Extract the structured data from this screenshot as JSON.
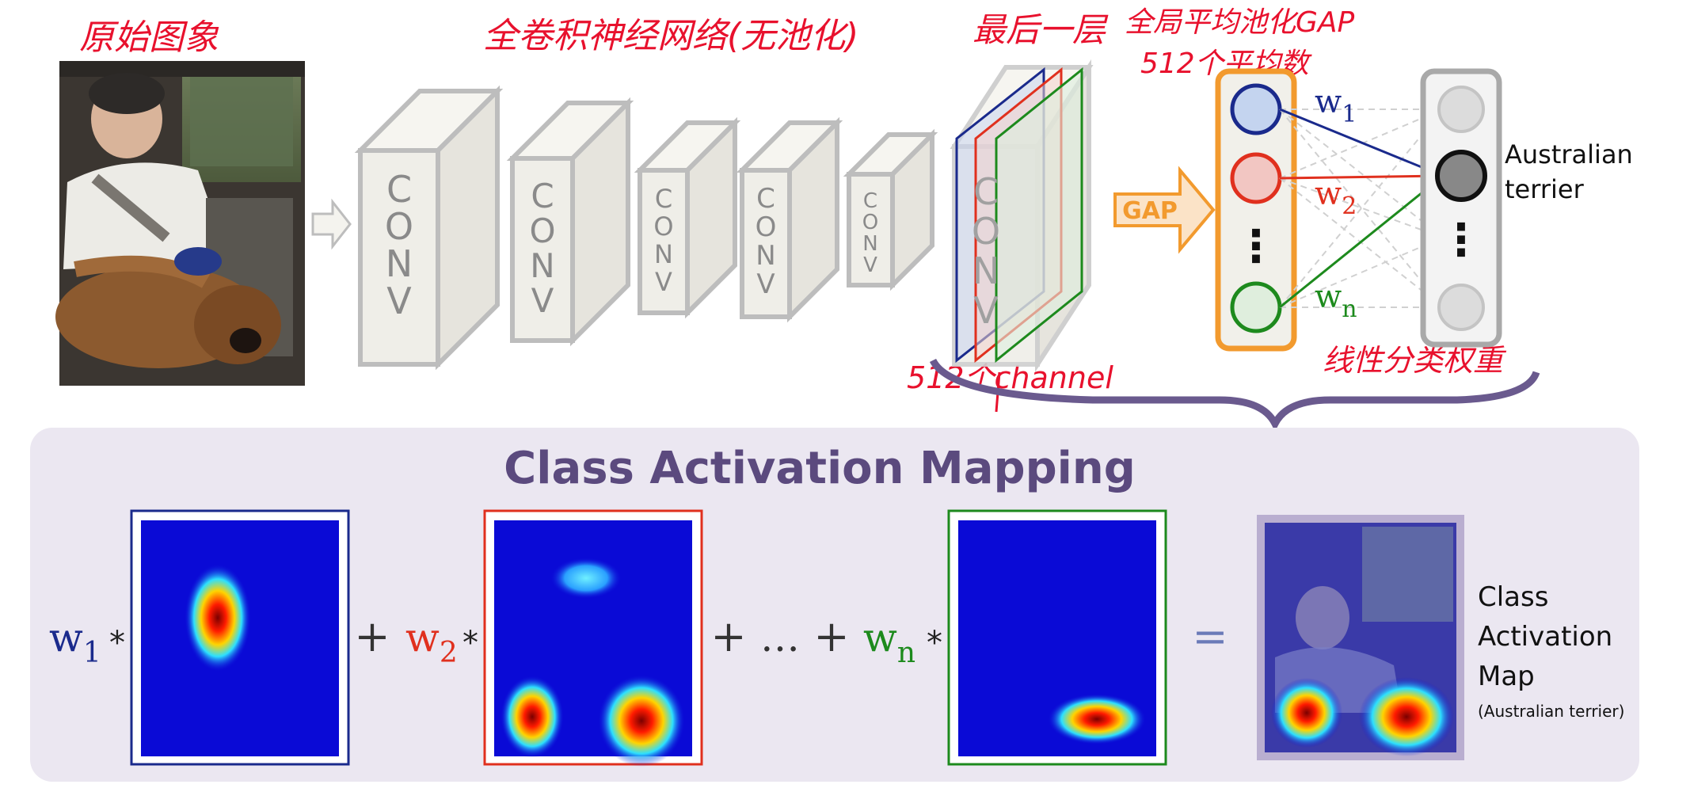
{
  "annotations": {
    "original_image": "原始图象",
    "fcn": "全卷积神经网络(无池化)",
    "last_layer": "最后一层",
    "gap_title": "全局平均池化GAP",
    "gap_count": "512个平均数",
    "channels": "512个channel",
    "linear_weights": "线性分类权重"
  },
  "network": {
    "conv_letters": [
      "C",
      "O",
      "N",
      "V"
    ],
    "gap_label": "GAP",
    "weights": [
      {
        "base": "w",
        "sub": "1",
        "color": "#1a2a8c"
      },
      {
        "base": "w",
        "sub": "2",
        "color": "#e0301e"
      },
      {
        "base": "w",
        "sub": "n",
        "color": "#1d8a1d"
      }
    ],
    "vdots": "⋮",
    "output_label_line1": "Australian",
    "output_label_line2": "terrier"
  },
  "cam": {
    "title": "Class Activation Mapping",
    "op_times": "*",
    "op_plus": "+",
    "op_ellipsis": "…",
    "op_equals": "=",
    "result_line1": "Class",
    "result_line2": "Activation",
    "result_line3": "Map",
    "result_sub": "(Australian terrier)"
  },
  "colors": {
    "annotation_red": "#e8112d",
    "gap_orange": "#f29a2e",
    "cam_bg": "#ebe7f1",
    "cam_title": "#5b4a7e",
    "arrow_purple": "#6a5a8e",
    "conv_gray": "#bdbdbd",
    "blue": "#1a2a8c",
    "red": "#e0301e",
    "green": "#1d8a1d"
  }
}
